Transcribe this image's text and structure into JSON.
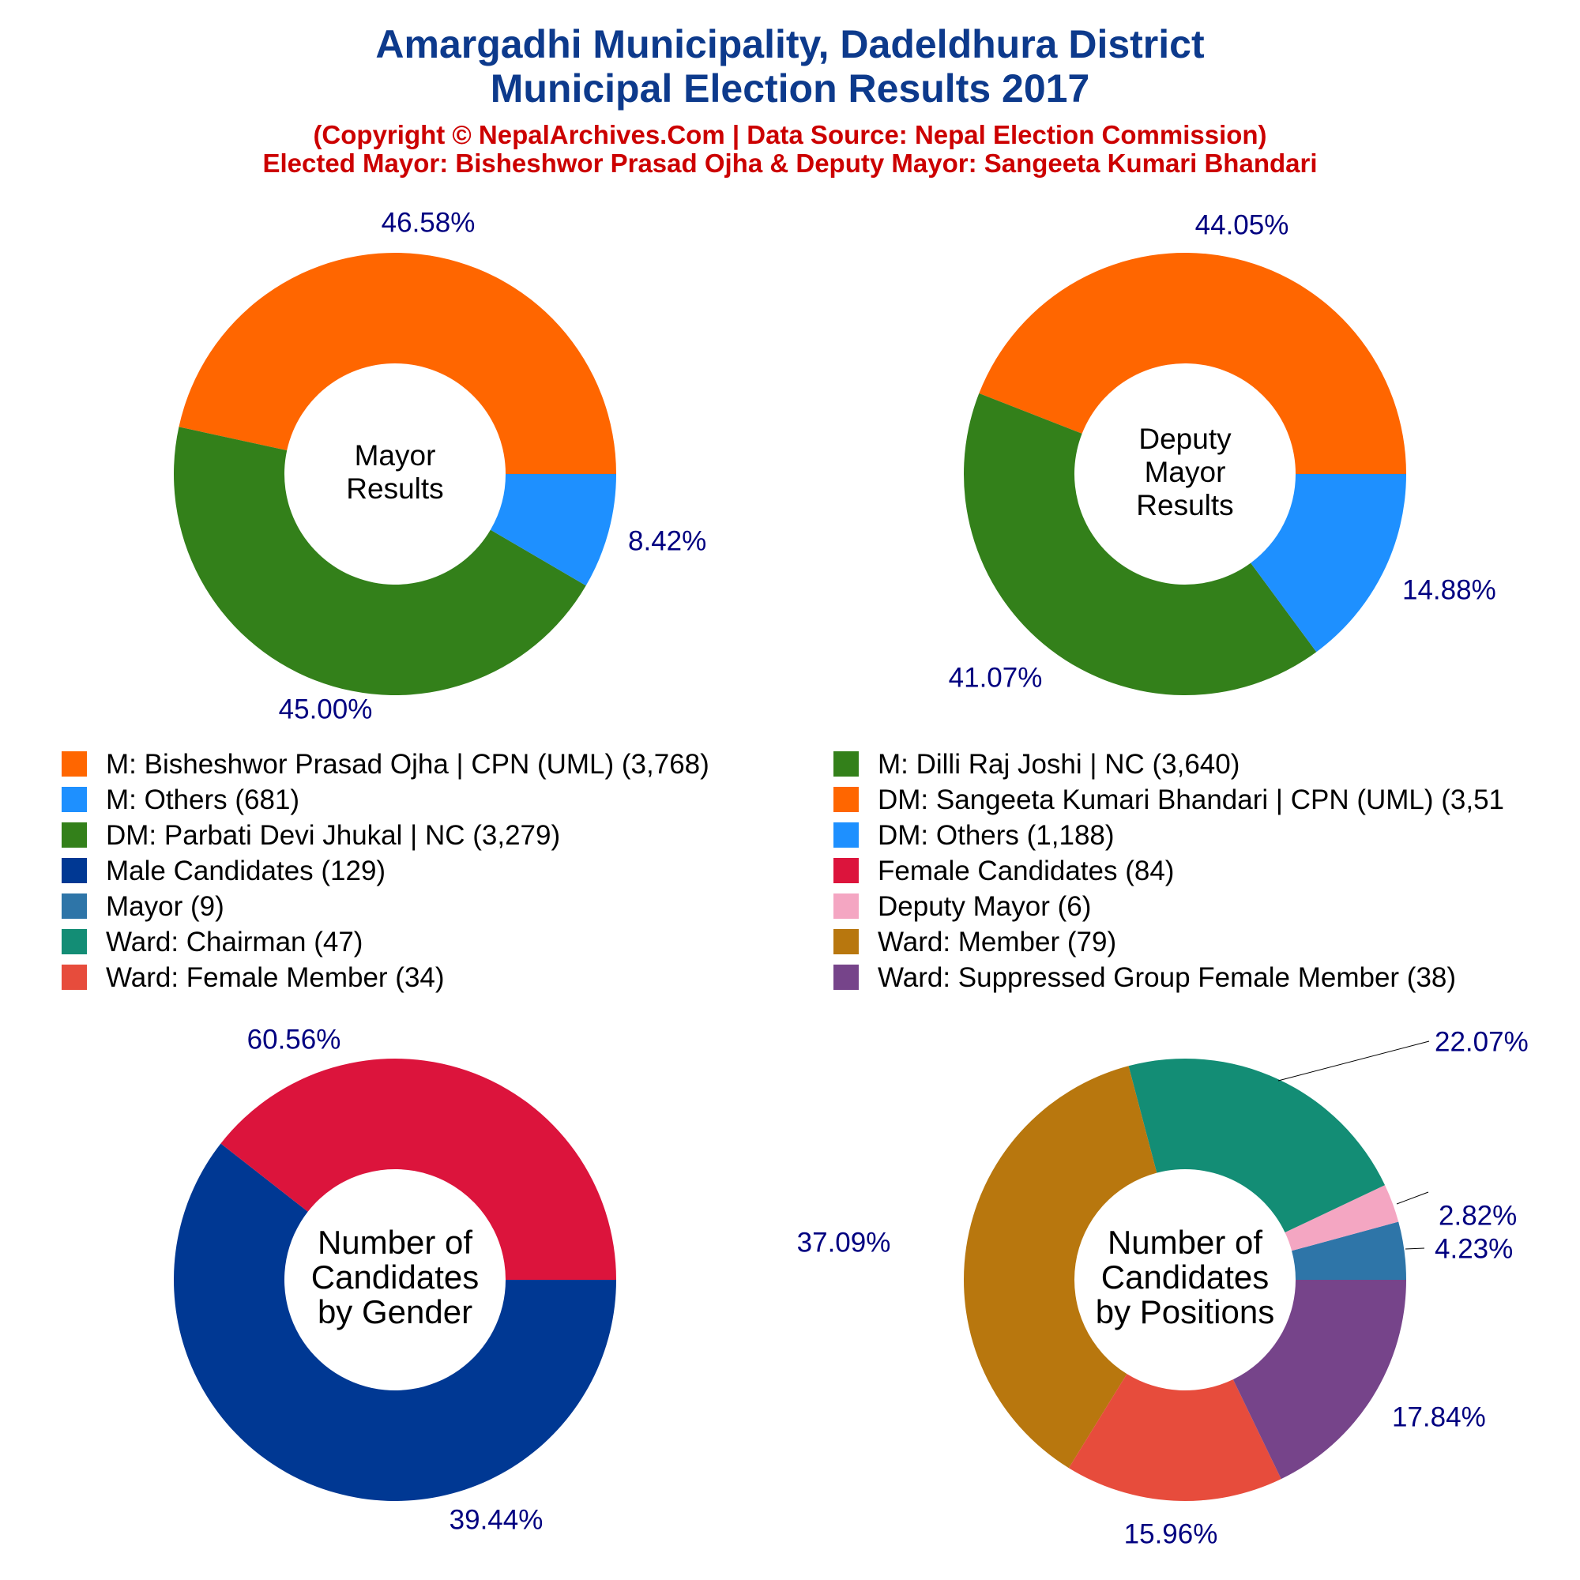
{
  "title_lines": [
    "Amargadhi Municipality, Dadeldhura District",
    "Municipal Election Results 2017"
  ],
  "subtitle_lines": [
    "(Copyright © NepalArchives.Com | Data Source: Nepal Election Commission)",
    "Elected Mayor: Bisheshwor Prasad Ojha & Deputy Mayor: Sangeeta Kumari Bhandari"
  ],
  "label_color": "#000080",
  "legend": [
    {
      "label": "M: Bisheshwor Prasad Ojha | CPN (UML) (3,768)",
      "color": "#ff6600"
    },
    {
      "label": "M: Dilli Raj Joshi | NC (3,640)",
      "color": "#33801a"
    },
    {
      "label": "M: Others (681)",
      "color": "#1e90ff"
    },
    {
      "label": "DM: Sangeeta Kumari Bhandari | CPN (UML) (3,51",
      "color": "#ff6600"
    },
    {
      "label": "DM: Parbati Devi Jhukal | NC (3,279)",
      "color": "#33801a"
    },
    {
      "label": "DM: Others (1,188)",
      "color": "#1e90ff"
    },
    {
      "label": "Male Candidates (129)",
      "color": "#003893"
    },
    {
      "label": "Female Candidates (84)",
      "color": "#dc143c"
    },
    {
      "label": "Mayor (9)",
      "color": "#2e75a8"
    },
    {
      "label": "Deputy Mayor (6)",
      "color": "#f4a6c2"
    },
    {
      "label": "Ward: Chairman (47)",
      "color": "#138d75"
    },
    {
      "label": "Ward: Member (79)",
      "color": "#b8770e"
    },
    {
      "label": "Ward: Female Member (34)",
      "color": "#e74c3c"
    },
    {
      "label": "Ward: Suppressed Group Female Member (38)",
      "color": "#76448a"
    }
  ],
  "chart_data": [
    {
      "type": "pie",
      "center_label": [
        "Mayor",
        "Results"
      ],
      "slices": [
        {
          "name": "M: Bisheshwor Prasad Ojha | CPN (UML)",
          "value": 3768,
          "label": "46.58%",
          "color": "#ff6600"
        },
        {
          "name": "M: Dilli Raj Joshi | NC",
          "value": 3640,
          "label": "45.00%",
          "color": "#33801a"
        },
        {
          "name": "M: Others",
          "value": 681,
          "label": "8.42%",
          "color": "#1e90ff"
        }
      ]
    },
    {
      "type": "pie",
      "center_label": [
        "Deputy",
        "Mayor",
        "Results"
      ],
      "slices": [
        {
          "name": "DM: Sangeeta Kumari Bhandari | CPN (UML)",
          "value": 3518,
          "label": "44.05%",
          "color": "#ff6600"
        },
        {
          "name": "DM: Parbati Devi Jhukal | NC",
          "value": 3279,
          "label": "41.07%",
          "color": "#33801a"
        },
        {
          "name": "DM: Others",
          "value": 1188,
          "label": "14.88%",
          "color": "#1e90ff"
        }
      ]
    },
    {
      "type": "pie",
      "center_label": [
        "Number of",
        "Candidates",
        "by Gender"
      ],
      "slices": [
        {
          "name": "Male Candidates",
          "value": 129,
          "label": "60.56%",
          "color": "#003893"
        },
        {
          "name": "Female Candidates",
          "value": 84,
          "label": "39.44%",
          "color": "#dc143c"
        }
      ]
    },
    {
      "type": "pie",
      "center_label": [
        "Number of",
        "Candidates",
        "by Positions"
      ],
      "slices": [
        {
          "name": "Mayor",
          "value": 9,
          "label": "4.23%",
          "color": "#2e75a8"
        },
        {
          "name": "Deputy Mayor",
          "value": 6,
          "label": "2.82%",
          "color": "#f4a6c2"
        },
        {
          "name": "Ward: Chairman",
          "value": 47,
          "label": "22.07%",
          "color": "#138d75"
        },
        {
          "name": "Ward: Member",
          "value": 79,
          "label": "37.09%",
          "color": "#b8770e"
        },
        {
          "name": "Ward: Female Member",
          "value": 34,
          "label": "15.96%",
          "color": "#e74c3c"
        },
        {
          "name": "Ward: Suppressed Group Female Member",
          "value": 38,
          "label": "17.84%",
          "color": "#76448a"
        }
      ]
    }
  ]
}
